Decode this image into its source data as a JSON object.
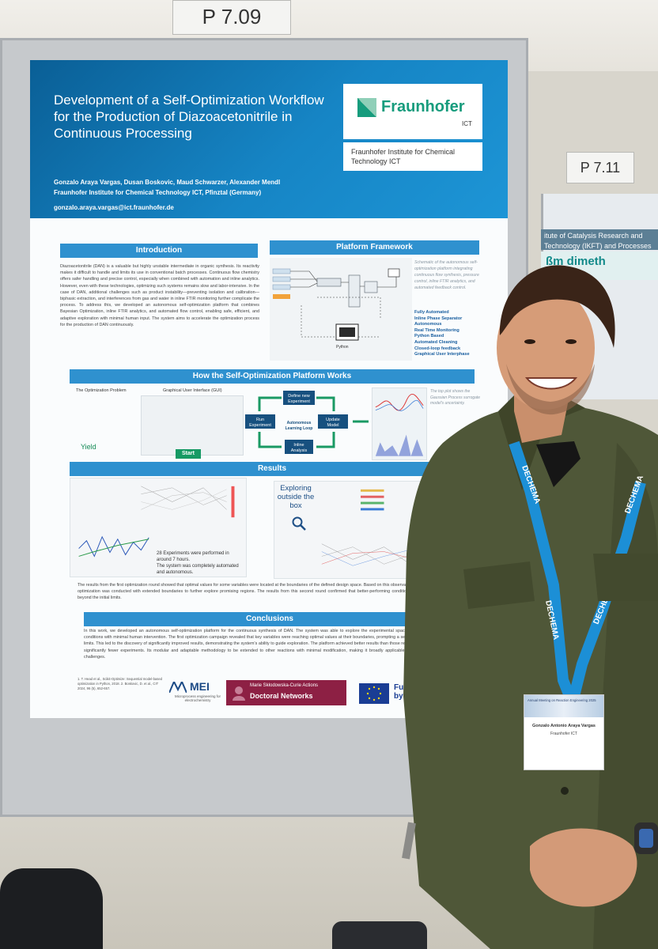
{
  "tags": {
    "main": "P 7.09",
    "right": "P 7.11"
  },
  "right_board": {
    "title": "itute of Catalysis Research and Technology (IKFT)\nand Processes for Energy Fuels",
    "subtitle": "ßm dimeth"
  },
  "poster": {
    "title": "Development of a Self-Optimization Workflow for the Production of Diazoacetonitrile in Continuous Processing",
    "logo": {
      "name": "Fraunhofer",
      "sub": "ICT"
    },
    "institute": "Fraunhofer Institute for Chemical Technology ICT",
    "authors": "Gonzalo Araya Vargas, Dusan Boskovic, Maud Schwarzer, Alexander Mendl",
    "affiliation": "Fraunhofer Institute for Chemical Technology ICT, Pfinztal (Germany)",
    "email": "gonzalo.araya.vargas@ict.fraunhofer.de",
    "sections": {
      "intro": "Introduction",
      "framework": "Platform Framework",
      "how": "How the Self-Optimization Platform Works",
      "results": "Results",
      "conclusions": "Conclusions"
    },
    "intro_text": "Diazoacetonitrile (DAN) is a valuable but highly unstable intermediate in organic synthesis. Its reactivity makes it difficult to handle and limits its use in conventional batch processes. Continuous flow chemistry offers safer handling and precise control, especially when combined with automation and inline analytics. However, even with these technologies, optimizing such systems remains slow and labor-intensive. In the case of DAN, additional challenges such as product instability—preventing isolation and calibration—biphasic extraction, and interferences from gas and water in inline FTIR monitoring further complicate the process. To address this, we developed an autonomous self-optimization platform that combines Bayesian Optimization, inline FTIR analytics, and automated flow control, enabling safe, efficient, and adaptive exploration with minimal human input. The system aims to accelerate the optimization process for the production of DAN continuously.",
    "schematic_note": "Schematic of the autonomous self-optimization platform integrating continuous flow synthesis, pressure control, inline FTIR analytics, and automated feedback control.",
    "features": [
      "Fully Automated",
      "Inline Phase Separator",
      "Autonomous",
      "Real Time Monitoring",
      "Python Based",
      "Automated Cleaning",
      "Closed-loop feedback",
      "Graphical User Interphase"
    ],
    "how": {
      "problem_label": "The Optimization Problem",
      "gui_label": "Graphical User Interface (GUI)",
      "yield": "Yield",
      "start": "Start",
      "loop": {
        "define": "Define new Experiment",
        "run": "Run Experiment",
        "center": "Autonomous Learning Loop",
        "update": "Update Model",
        "inline": "Inline Analysis"
      },
      "note": "The top plot shows the Gaussian Process surrogate model's uncertainty."
    },
    "results": {
      "exploring": "Exploring outside the box",
      "bullets": [
        "28 Experiments were performed in around 7 hours.",
        "The system was completely automated and autonomous."
      ],
      "text": "The results from the first optimization round showed that optimal values for some variables were located at the boundaries of the defined design space. Based on this observation, a second round of optimization was conducted with extended boundaries to further explore promising regions. The results from this second round confirmed that better-performing conditions were indeed found beyond the initial limits."
    },
    "conclusion_text": "In this work, we developed an autonomous self-optimization platform for the continuous synthesis of DAN. The system was able to explore the experimental space while identifying optimal conditions with minimal human intervention. The first optimization campaign revealed that key variables were reaching optimal values at their boundaries, prompting a second round with expanded limits. This led to the discovery of significantly improved results, demonstrating the system's ability to guide exploration. The platform achieved better results than those reported in literature [2], with significantly fewer experiments. Its modular and adaptable methodology to be extended to other reactions with minimal modification, making it broadly applicable across different synthetic challenges.",
    "refs": "1. T. Head et al., Scikit-Optimize: Sequential model-based optimization in Python, 2018. 2. Boskovic, D. et al., CIT 2024, 96 (5), 652-657.",
    "partners": {
      "mei": "MEI",
      "mei_sub": "Microprocess engineering for electrochemistry",
      "msca_top": "Marie Skłodowska-Curie Actions",
      "msca_main": "Doctoral Networks",
      "funded": "Funded by the"
    }
  },
  "badge": {
    "event": "Annual Meeting on Reaction Engineering 2025",
    "name": "Gonzalo Antonio Araya Vargas",
    "org": "Fraunhofer ICT"
  },
  "lanyard_text": "DECHEMA",
  "colors": {
    "poster_blue": "#1685c5",
    "section_blue": "#2f91cf",
    "fraunhofer_green": "#179c7d",
    "jacket": "#4f5738",
    "lanyard": "#1c8fd6"
  }
}
